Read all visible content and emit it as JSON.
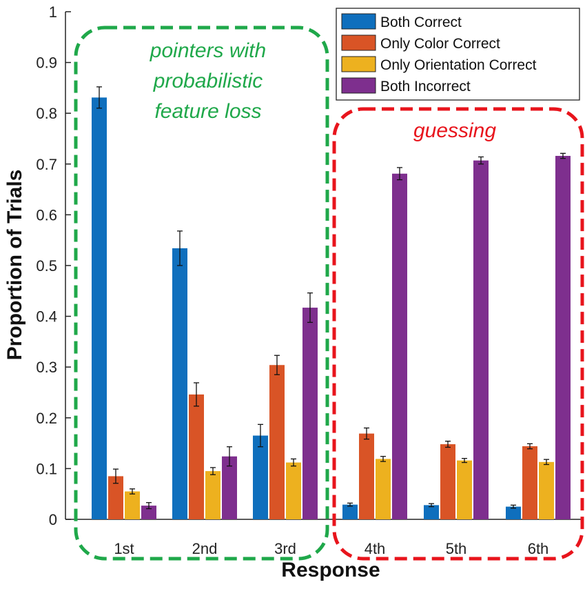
{
  "chart_data": {
    "type": "bar",
    "categories": [
      "1st",
      "2nd",
      "3rd",
      "4th",
      "5th",
      "6th"
    ],
    "series": [
      {
        "name": "Both Correct",
        "color": "#0f6fbd",
        "values": [
          0.831,
          0.534,
          0.165,
          0.029,
          0.028,
          0.025
        ],
        "errors": [
          0.021,
          0.034,
          0.022,
          0.003,
          0.003,
          0.003
        ]
      },
      {
        "name": "Only Color Correct",
        "color": "#d95426",
        "values": [
          0.085,
          0.246,
          0.304,
          0.169,
          0.148,
          0.144
        ],
        "errors": [
          0.014,
          0.023,
          0.019,
          0.011,
          0.006,
          0.005
        ]
      },
      {
        "name": "Only Orientation Correct",
        "color": "#edb11f",
        "values": [
          0.055,
          0.095,
          0.112,
          0.119,
          0.116,
          0.113
        ],
        "errors": [
          0.005,
          0.007,
          0.007,
          0.005,
          0.004,
          0.005
        ]
      },
      {
        "name": "Both Incorrect",
        "color": "#7e2f8e",
        "values": [
          0.027,
          0.124,
          0.417,
          0.681,
          0.707,
          0.716
        ],
        "errors": [
          0.006,
          0.019,
          0.029,
          0.012,
          0.007,
          0.005
        ]
      }
    ],
    "xlabel": "Response",
    "ylabel": "Proportion of Trials",
    "ylim": [
      0,
      1
    ],
    "yticks": [
      "0",
      "0.1",
      "0.2",
      "0.3",
      "0.4",
      "0.5",
      "0.6",
      "0.7",
      "0.8",
      "0.9",
      "1"
    ],
    "grid": false,
    "legend_position": "top-right",
    "annotations": [
      {
        "lines": [
          "pointers with",
          "probabilistic",
          "feature loss"
        ],
        "color": "#1fa84a",
        "groups": [
          "1st",
          "2nd",
          "3rd"
        ]
      },
      {
        "lines": [
          "guessing"
        ],
        "color": "#e8141c",
        "groups": [
          "4th",
          "5th",
          "6th"
        ]
      }
    ]
  }
}
